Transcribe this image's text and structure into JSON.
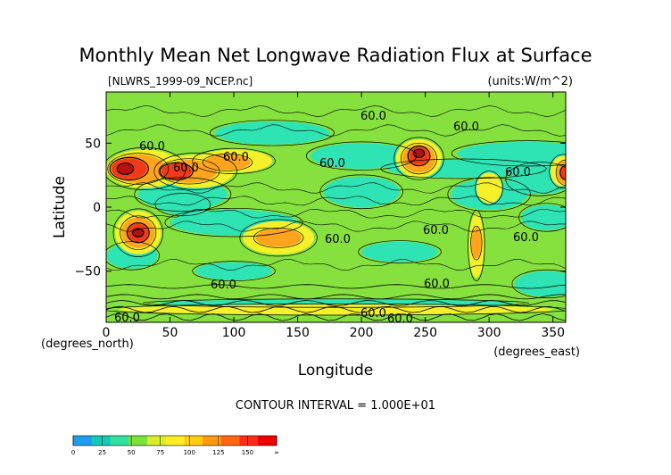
{
  "chart_data": {
    "type": "heatmap",
    "title": "Monthly Mean Net Longwave Radiation Flux at Surface",
    "source_file": "[NLWRS_1999-09_NCEP.nc]",
    "units_label": "(units:W/m^2)",
    "xlabel": "Longitude",
    "ylabel": "Latitude",
    "x_unit_label": "(degrees_east)",
    "y_unit_label": "(degrees_north)",
    "xlim": [
      0,
      360
    ],
    "ylim": [
      -90,
      90
    ],
    "x_ticks": [
      0,
      50,
      100,
      150,
      200,
      250,
      300,
      350
    ],
    "y_ticks": [
      50,
      0,
      -50
    ],
    "y_tick_labels": [
      "50",
      "0",
      "−50"
    ],
    "contour_interval_text": "CONTOUR INTERVAL = 1.000E+01",
    "contour_labels": [
      "60.0",
      "60.0",
      "60.0",
      "60.0",
      "60.0",
      "60.0",
      "60.0",
      "60.0",
      "60.0",
      "60.0",
      "60.0",
      "60.0",
      "60.0",
      "60.0",
      "60.0"
    ],
    "colorbar": {
      "labels": [
        "0",
        "25",
        "50",
        "75",
        "100",
        "125",
        "150",
        "∞"
      ],
      "colors": [
        "#1e9df0",
        "#15c9b8",
        "#30e0a0",
        "#7ae23a",
        "#d8ee2c",
        "#ffee22",
        "#ffcc11",
        "#ff9a10",
        "#ff6611",
        "#ff2a18",
        "#ee0000"
      ]
    },
    "field_colors": {
      "cyan": "#2fe4b4",
      "green": "#86e13e",
      "yellow": "#f4f02a",
      "orange": "#ffa41e",
      "red": "#f23a1a",
      "darkred": "#b8100e"
    }
  }
}
